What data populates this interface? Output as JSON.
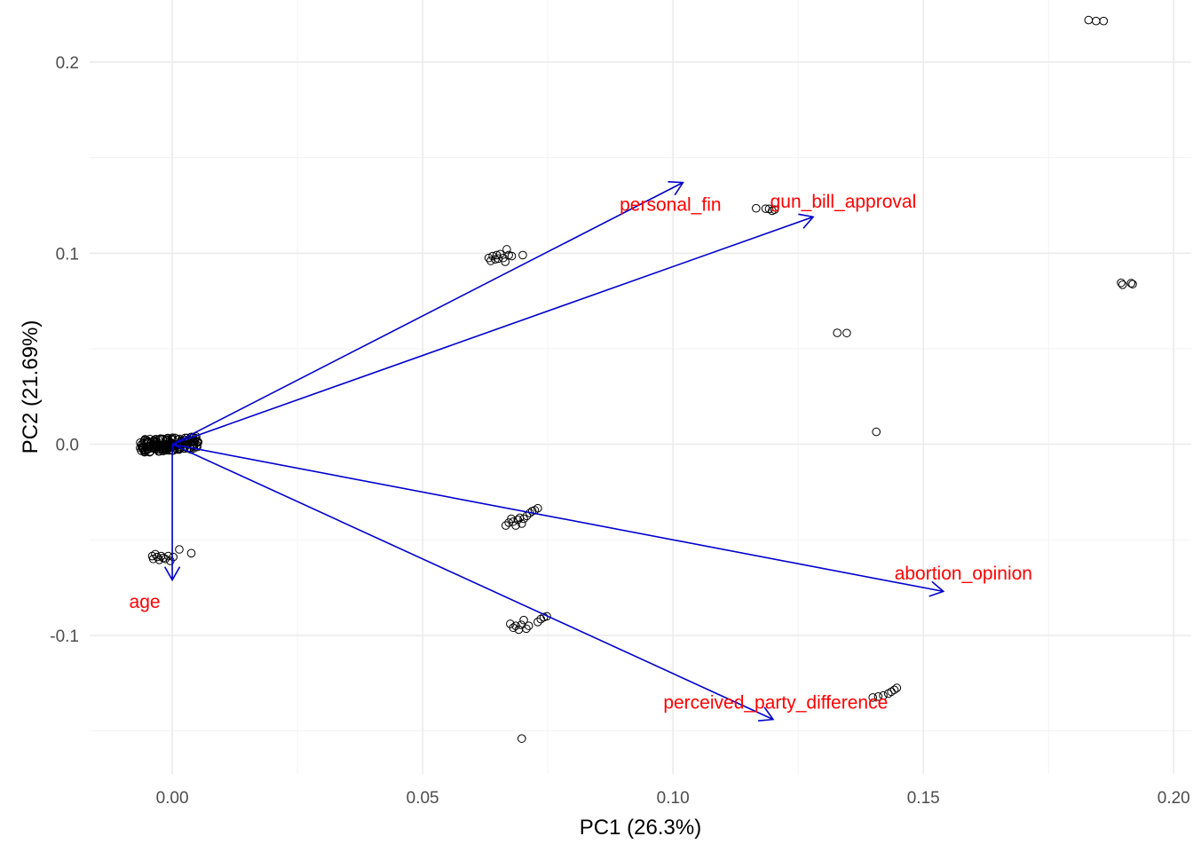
{
  "chart_data": {
    "type": "scatter",
    "subtype": "pca-biplot",
    "title": "",
    "xlabel": "PC1 (26.3%)",
    "ylabel": "PC2 (21.69%)",
    "xlim": [
      -0.0165,
      0.2035
    ],
    "ylim": [
      -0.1725,
      0.2325
    ],
    "x_ticks": [
      0.0,
      0.05,
      0.1,
      0.15,
      0.2
    ],
    "x_tick_labels": [
      "0.00",
      "0.05",
      "0.10",
      "0.15",
      "0.20"
    ],
    "y_ticks": [
      -0.1,
      0.0,
      0.1,
      0.2
    ],
    "y_tick_labels": [
      "-0.1",
      "0.0",
      "0.1",
      "0.2"
    ],
    "grid": true,
    "colors": {
      "points": "#000000",
      "arrows": "#0000cd",
      "labels": "#ff0000",
      "grid": "#ebebeb"
    },
    "loadings": [
      {
        "name": "personal_fin",
        "x": 0.102,
        "y": 0.137,
        "label_x": 0.0995,
        "label_y": 0.1255
      },
      {
        "name": "gun_bill_approval",
        "x": 0.128,
        "y": 0.119,
        "label_x": 0.134,
        "label_y": 0.127
      },
      {
        "name": "abortion_opinion",
        "x": 0.154,
        "y": -0.077,
        "label_x": 0.158,
        "label_y": -0.0675
      },
      {
        "name": "perceived_party_difference",
        "x": 0.12,
        "y": -0.144,
        "label_x": 0.1205,
        "label_y": -0.135
      },
      {
        "name": "age",
        "x": 0.0,
        "y": -0.071,
        "label_x": -0.0055,
        "label_y": -0.0825
      }
    ],
    "points": [
      {
        "x": 0.183,
        "y": 0.222
      },
      {
        "x": 0.1845,
        "y": 0.2215
      },
      {
        "x": 0.186,
        "y": 0.2215
      },
      {
        "x": 0.1895,
        "y": 0.0845
      },
      {
        "x": 0.1898,
        "y": 0.0835
      },
      {
        "x": 0.1915,
        "y": 0.0843
      },
      {
        "x": 0.1918,
        "y": 0.0838
      },
      {
        "x": 0.1166,
        "y": 0.1235
      },
      {
        "x": 0.1185,
        "y": 0.1233
      },
      {
        "x": 0.1192,
        "y": 0.1232
      },
      {
        "x": 0.1198,
        "y": 0.1222
      },
      {
        "x": 0.1203,
        "y": 0.1228
      },
      {
        "x": 0.1328,
        "y": 0.0583
      },
      {
        "x": 0.1347,
        "y": 0.0582
      },
      {
        "x": 0.1406,
        "y": 0.0065
      },
      {
        "x": 0.0632,
        "y": 0.0975
      },
      {
        "x": 0.0636,
        "y": 0.096
      },
      {
        "x": 0.064,
        "y": 0.0985
      },
      {
        "x": 0.0645,
        "y": 0.0968
      },
      {
        "x": 0.0648,
        "y": 0.099
      },
      {
        "x": 0.0651,
        "y": 0.0972
      },
      {
        "x": 0.0655,
        "y": 0.0995
      },
      {
        "x": 0.0661,
        "y": 0.0975
      },
      {
        "x": 0.0665,
        "y": 0.0955
      },
      {
        "x": 0.0668,
        "y": 0.102
      },
      {
        "x": 0.0672,
        "y": 0.099
      },
      {
        "x": 0.0678,
        "y": 0.0985
      },
      {
        "x": 0.07,
        "y": 0.099
      },
      {
        "x": 0.0666,
        "y": -0.0425
      },
      {
        "x": 0.0672,
        "y": -0.041
      },
      {
        "x": 0.0677,
        "y": -0.039
      },
      {
        "x": 0.0681,
        "y": -0.0405
      },
      {
        "x": 0.0686,
        "y": -0.0425
      },
      {
        "x": 0.069,
        "y": -0.0395
      },
      {
        "x": 0.0694,
        "y": -0.0385
      },
      {
        "x": 0.0698,
        "y": -0.0415
      },
      {
        "x": 0.0702,
        "y": -0.039
      },
      {
        "x": 0.0708,
        "y": -0.0375
      },
      {
        "x": 0.0714,
        "y": -0.036
      },
      {
        "x": 0.0719,
        "y": -0.035
      },
      {
        "x": 0.0724,
        "y": -0.0345
      },
      {
        "x": 0.073,
        "y": -0.0335
      },
      {
        "x": 0.0675,
        "y": -0.094
      },
      {
        "x": 0.0681,
        "y": -0.096
      },
      {
        "x": 0.0686,
        "y": -0.095
      },
      {
        "x": 0.0692,
        "y": -0.097
      },
      {
        "x": 0.0697,
        "y": -0.0945
      },
      {
        "x": 0.0702,
        "y": -0.092
      },
      {
        "x": 0.0707,
        "y": -0.0965
      },
      {
        "x": 0.0712,
        "y": -0.095
      },
      {
        "x": 0.073,
        "y": -0.093
      },
      {
        "x": 0.0736,
        "y": -0.0915
      },
      {
        "x": 0.0742,
        "y": -0.0905
      },
      {
        "x": 0.0748,
        "y": -0.09
      },
      {
        "x": 0.0698,
        "y": -0.154
      },
      {
        "x": 0.1399,
        "y": -0.1325
      },
      {
        "x": 0.141,
        "y": -0.132
      },
      {
        "x": 0.142,
        "y": -0.1315
      },
      {
        "x": 0.143,
        "y": -0.1305
      },
      {
        "x": 0.1436,
        "y": -0.1295
      },
      {
        "x": 0.1442,
        "y": -0.1285
      },
      {
        "x": 0.1447,
        "y": -0.1275
      },
      {
        "x": -0.004,
        "y": -0.0585
      },
      {
        "x": -0.0038,
        "y": -0.06
      },
      {
        "x": -0.0034,
        "y": -0.0575
      },
      {
        "x": -0.003,
        "y": -0.059
      },
      {
        "x": -0.0026,
        "y": -0.0605
      },
      {
        "x": -0.0022,
        "y": -0.0585
      },
      {
        "x": -0.0018,
        "y": -0.0595
      },
      {
        "x": -0.0014,
        "y": -0.06
      },
      {
        "x": -0.0008,
        "y": -0.0585
      },
      {
        "x": -0.0004,
        "y": -0.061
      },
      {
        "x": 0.0002,
        "y": -0.059
      },
      {
        "x": 0.0014,
        "y": -0.055
      },
      {
        "x": 0.0038,
        "y": -0.057
      }
    ]
  }
}
